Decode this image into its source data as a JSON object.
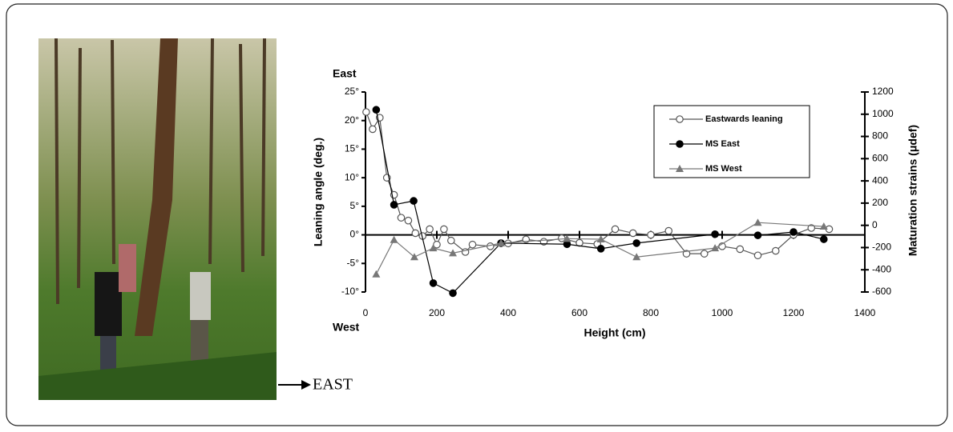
{
  "chart_data": {
    "type": "line",
    "x_label": "Height (cm)",
    "y_label": "Leaning angle (deg.)",
    "y2_label": "Maturation strains (μdef)",
    "annotations": [
      "East",
      "West",
      "EAST"
    ],
    "xlim": [
      0,
      1400
    ],
    "xticks": [
      0,
      200,
      400,
      600,
      800,
      1000,
      1200,
      1400
    ],
    "ylim": [
      -10,
      25
    ],
    "yticks": [
      {
        "value": -10,
        "label": "-10°"
      },
      {
        "value": -5,
        "label": "-5°"
      },
      {
        "value": 0,
        "label": "0°"
      },
      {
        "value": 5,
        "label": "5°"
      },
      {
        "value": 10,
        "label": "10°"
      },
      {
        "value": 15,
        "label": "15°"
      },
      {
        "value": 20,
        "label": "20°"
      },
      {
        "value": 25,
        "label": "25°"
      }
    ],
    "y2lim": [
      -600,
      1200
    ],
    "y2ticks": [
      -600,
      -400,
      -200,
      0,
      200,
      400,
      600,
      800,
      1000,
      1200
    ],
    "legend": "upper-right",
    "series": [
      {
        "name": "Eastwards leaning",
        "color": "#555555",
        "marker": "open-circle",
        "x": [
          2,
          20,
          40,
          60,
          80,
          100,
          120,
          140,
          160,
          180,
          200,
          220,
          240,
          280,
          300,
          350,
          400,
          450,
          500,
          550,
          600,
          650,
          700,
          750,
          800,
          850,
          900,
          950,
          1000,
          1050,
          1100,
          1150,
          1200,
          1250,
          1300
        ],
        "values": [
          21.5,
          18.5,
          20.5,
          10,
          7,
          3,
          2.5,
          0.3,
          -0.2,
          1,
          -1.7,
          1,
          -1,
          -3,
          -1.7,
          -2,
          -1.5,
          -0.8,
          -1.2,
          -0.6,
          -1.4,
          -1.6,
          1,
          0.3,
          0,
          0.7,
          -3.3,
          -3.3,
          -2,
          -2.5,
          -3.6,
          -2.8,
          0,
          1.2,
          1
        ]
      },
      {
        "name": "MS East",
        "color": "#000000",
        "marker": "circle",
        "axis": "y2",
        "x": [
          30,
          80,
          135,
          190,
          245,
          380,
          565,
          660,
          760,
          980,
          1100,
          1200,
          1285
        ],
        "values": [
          1040,
          185,
          220,
          -520,
          -610,
          -160,
          -170,
          -210,
          -160,
          -80,
          -90,
          -60,
          -125
        ]
      },
      {
        "name": "MS West",
        "color": "#777777",
        "marker": "triangle",
        "axis": "y2",
        "x": [
          30,
          80,
          137,
          190,
          245,
          380,
          565,
          660,
          760,
          980,
          1100,
          1285
        ],
        "values": [
          -440,
          -130,
          -285,
          -205,
          -250,
          -160,
          -120,
          -125,
          -285,
          -205,
          25,
          -10
        ]
      }
    ]
  }
}
